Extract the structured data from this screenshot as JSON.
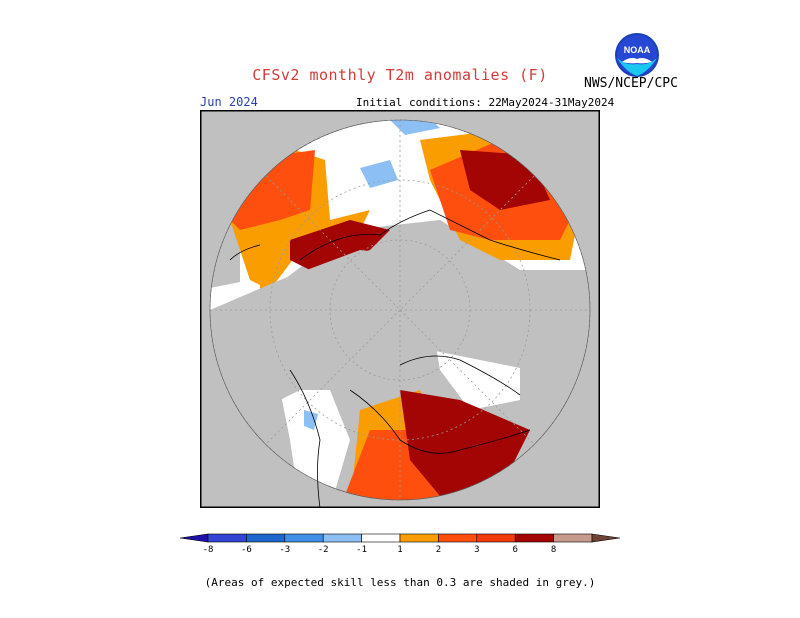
{
  "header": {
    "title": "CFSv2 monthly T2m anomalies (F)",
    "agency": "NWS/NCEP/CPC",
    "month": "Jun 2024",
    "initial_conditions": "Initial conditions: 22May2024-31May2024",
    "logo_text": "NOAA"
  },
  "colorbar": {
    "tick_labels": [
      "-8",
      "-6",
      "-3",
      "-2",
      "-1",
      "1",
      "2",
      "3",
      "6",
      "8"
    ],
    "colors": [
      "#1d0fa8",
      "#3344d4",
      "#1e66cc",
      "#3f8fe8",
      "#8cc0f5",
      "#ffffff",
      "#f99d00",
      "#ff4f0e",
      "#f23a0c",
      "#a30404",
      "#c79b8c",
      "#6e4336"
    ]
  },
  "map": {
    "background_color": "#c0c0c0",
    "frame_color": "#000000",
    "icons": [
      "polar-stereographic-map"
    ]
  },
  "footnote": "(Areas of expected skill less than 0.3 are shaded in grey.)"
}
